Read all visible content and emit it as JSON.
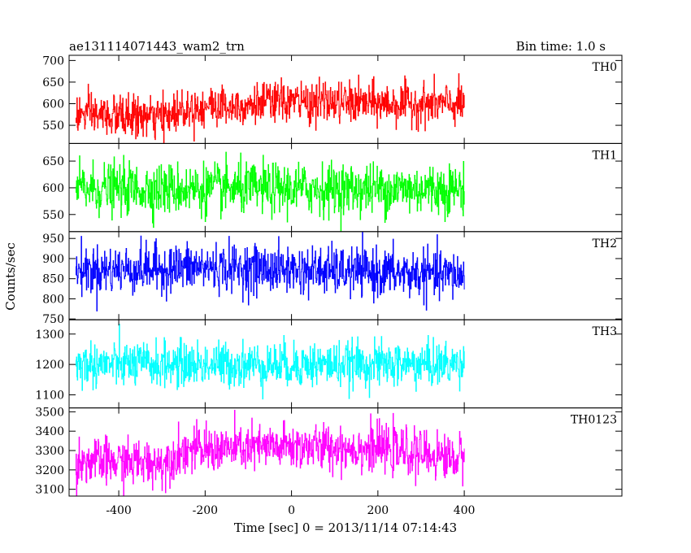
{
  "chart_data": {
    "type": "line",
    "title": "ae131114071443_wam2_trn",
    "subtitle": "Bin time: 1.0 s",
    "xlabel": "Time [sec] 0 = 2013/11/14 07:14:43",
    "ylabel": "Counts/sec",
    "xlim": [
      -515,
      765
    ],
    "x_ticks": [
      -400,
      -200,
      0,
      200,
      400
    ],
    "x_range": [
      -500,
      400
    ],
    "bin_time_s": 1.0,
    "grid": false,
    "panels": [
      {
        "name": "TH0",
        "color": "#ff0000",
        "ylim": [
          508,
          712
        ],
        "y_ticks": [
          550,
          600,
          650,
          700
        ],
        "trend": [
          [
            -500,
            575
          ],
          [
            -300,
            567
          ],
          [
            -250,
            590
          ],
          [
            0,
            605
          ],
          [
            200,
            600
          ],
          [
            400,
            598
          ]
        ],
        "noise_sd": 24
      },
      {
        "name": "TH1",
        "color": "#00ff00",
        "ylim": [
          518,
          683
        ],
        "y_ticks": [
          550,
          600,
          650
        ],
        "trend": [
          [
            -500,
            598
          ],
          [
            400,
            598
          ]
        ],
        "noise_sd": 24
      },
      {
        "name": "TH2",
        "color": "#0000ff",
        "ylim": [
          748,
          967
        ],
        "y_ticks": [
          750,
          800,
          850,
          900,
          950
        ],
        "trend": [
          [
            -500,
            870
          ],
          [
            -200,
            878
          ],
          [
            0,
            872
          ],
          [
            400,
            858
          ]
        ],
        "noise_sd": 30
      },
      {
        "name": "TH3",
        "color": "#00ffff",
        "ylim": [
          1057,
          1347
        ],
        "y_ticks": [
          1100,
          1200,
          1300
        ],
        "trend": [
          [
            -500,
            1200
          ],
          [
            400,
            1200
          ]
        ],
        "noise_sd": 37
      },
      {
        "name": "TH0123",
        "color": "#ff00ff",
        "ylim": [
          3065,
          3520
        ],
        "y_ticks": [
          3100,
          3200,
          3300,
          3400,
          3500
        ],
        "trend": [
          [
            -500,
            3245
          ],
          [
            -300,
            3235
          ],
          [
            -250,
            3300
          ],
          [
            0,
            3320
          ],
          [
            200,
            3310
          ],
          [
            400,
            3255
          ]
        ],
        "noise_sd": 60
      }
    ]
  }
}
